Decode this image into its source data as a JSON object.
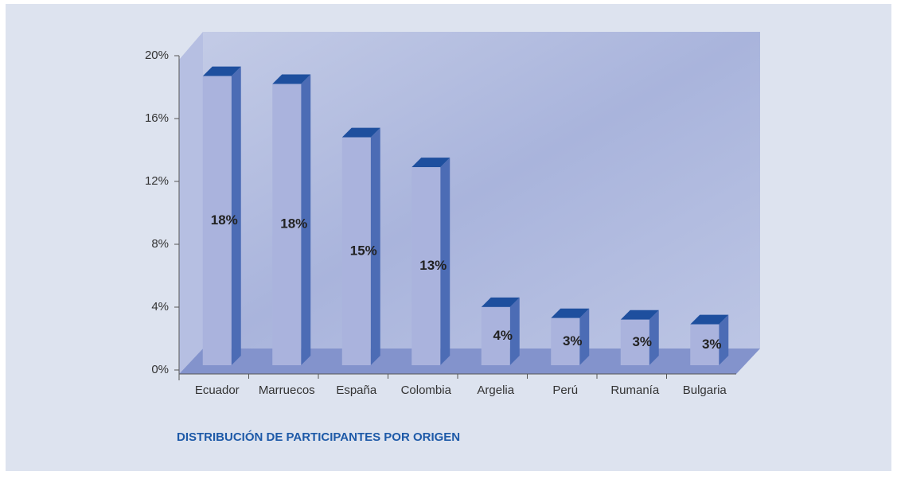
{
  "chart_data": {
    "type": "bar",
    "title": "DISTRIBUCIÓN DE PARTICIPANTES POR ORIGEN",
    "categories": [
      "Ecuador",
      "Marruecos",
      "España",
      "Colombia",
      "Argelia",
      "Perú",
      "Rumanía",
      "Bulgaria"
    ],
    "values": [
      18.4,
      17.9,
      14.5,
      12.6,
      3.7,
      3.0,
      2.9,
      2.6
    ],
    "value_labels": [
      "18%",
      "18%",
      "15%",
      "13%",
      "4%",
      "3%",
      "3%",
      "3%"
    ],
    "color": "#aab3dd",
    "ylim": [
      0,
      20
    ],
    "yticks": [
      {
        "value": 0,
        "label": "0%"
      },
      {
        "value": 4,
        "label": "4%"
      },
      {
        "value": 8,
        "label": "8%"
      },
      {
        "value": 12,
        "label": "12%"
      },
      {
        "value": 16,
        "label": "16%"
      },
      {
        "value": 20,
        "label": "20%"
      }
    ]
  }
}
